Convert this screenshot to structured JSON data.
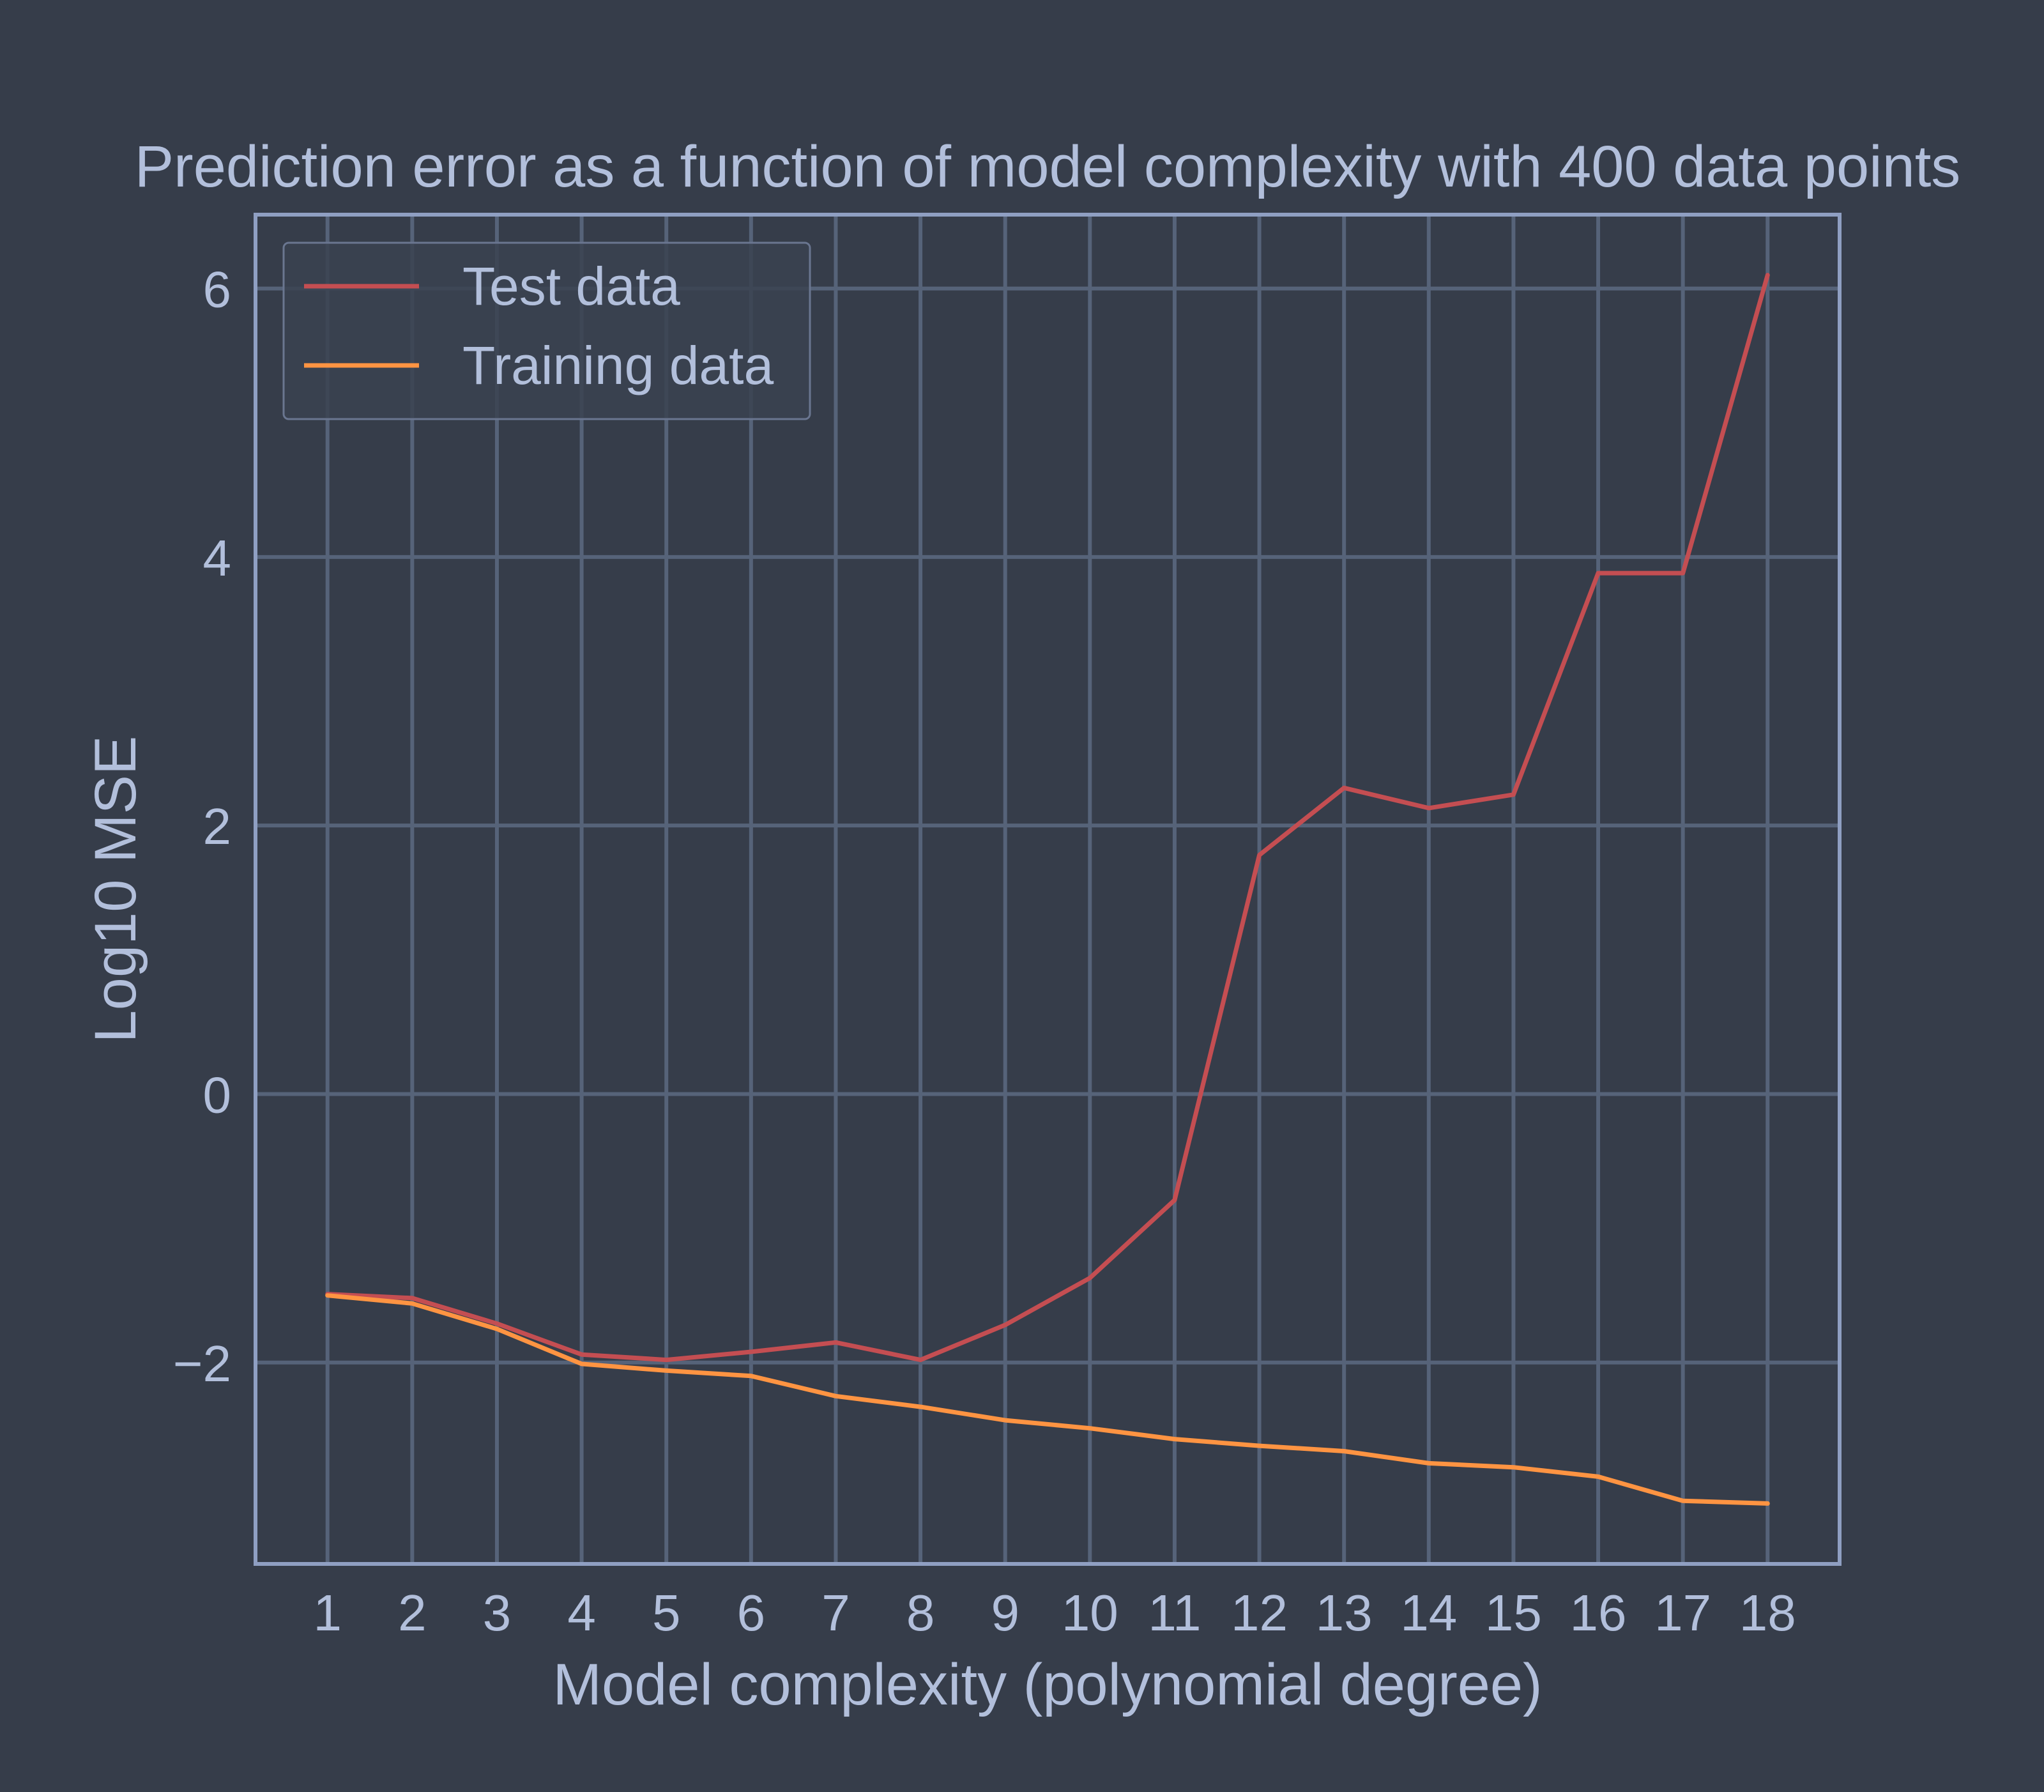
{
  "theme": {
    "background": "#363d4a",
    "grid": "#566379",
    "frame": "#8f9fc2",
    "text": "#b2bfdb",
    "legend_bg": "#3a4250",
    "legend_border": "#6a7690"
  },
  "chart_data": {
    "type": "line",
    "title": "Prediction error as a function of model complexity with 400 data points",
    "xlabel": "Model complexity (polynomial degree)",
    "ylabel": "Log10 MSE",
    "x": [
      1,
      2,
      3,
      4,
      5,
      6,
      7,
      8,
      9,
      10,
      11,
      12,
      13,
      14,
      15,
      16,
      17,
      18
    ],
    "xticks": [
      1,
      2,
      3,
      4,
      5,
      6,
      7,
      8,
      9,
      10,
      11,
      12,
      13,
      14,
      15,
      16,
      17,
      18
    ],
    "yticks": [
      -2,
      0,
      2,
      4,
      6
    ],
    "xlim": [
      0.15,
      18.85
    ],
    "ylim": [
      -3.5,
      6.55
    ],
    "grid": true,
    "legend_position": "top-left",
    "series": [
      {
        "name": "Test data",
        "color": "#c44e52",
        "values": [
          -1.49,
          -1.52,
          -1.71,
          -1.94,
          -1.98,
          -1.92,
          -1.85,
          -1.98,
          -1.72,
          -1.37,
          -0.79,
          1.78,
          2.28,
          2.13,
          2.23,
          3.88,
          3.88,
          6.1
        ]
      },
      {
        "name": "Training data",
        "color": "#ff9442",
        "values": [
          -1.5,
          -1.56,
          -1.75,
          -2.01,
          -2.06,
          -2.1,
          -2.25,
          -2.33,
          -2.43,
          -2.49,
          -2.57,
          -2.62,
          -2.66,
          -2.75,
          -2.78,
          -2.85,
          -3.03,
          -3.05
        ]
      }
    ]
  }
}
